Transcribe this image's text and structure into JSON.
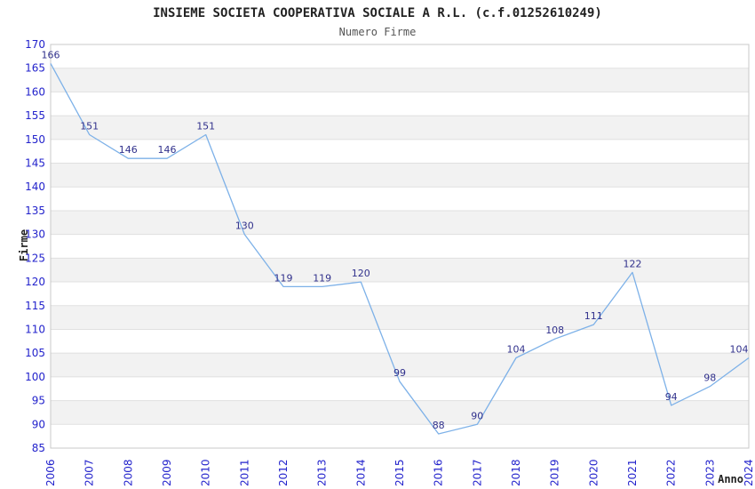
{
  "chart_data": {
    "type": "line",
    "title": "INSIEME SOCIETA COOPERATIVA SOCIALE A R.L. (c.f.01252610249)",
    "subtitle": "Numero Firme",
    "xlabel": "Anno",
    "ylabel": "Firme",
    "categories": [
      "2006",
      "2007",
      "2008",
      "2009",
      "2010",
      "2011",
      "2012",
      "2013",
      "2014",
      "2015",
      "2016",
      "2017",
      "2018",
      "2019",
      "2020",
      "2021",
      "2022",
      "2023",
      "2024"
    ],
    "values": [
      166,
      151,
      146,
      146,
      151,
      130,
      119,
      119,
      120,
      99,
      88,
      90,
      104,
      108,
      111,
      122,
      94,
      98,
      104
    ],
    "ylim": [
      85,
      170
    ],
    "ytick_step": 5,
    "grid": true,
    "legend_position": "none",
    "data_labels_visible": true,
    "colors": {
      "line": "#7db1e8",
      "tick_label": "#2323cc",
      "data_label": "#31318c",
      "band_gray": "#f2f2f2",
      "band_white": "#ffffff",
      "grid_line": "#e0e0e0",
      "plot_border": "#c8c8c8",
      "title": "#222222",
      "subtitle": "#555555",
      "axis_title": "#222222"
    }
  }
}
